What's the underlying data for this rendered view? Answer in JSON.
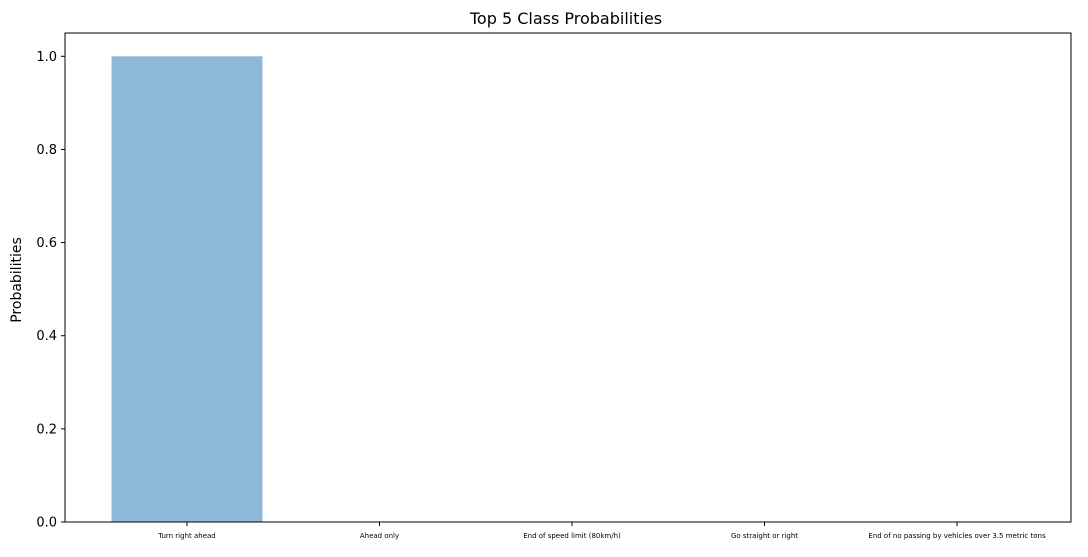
{
  "chart_data": {
    "type": "bar",
    "title": "Top 5 Class Probabilities",
    "xlabel": "",
    "ylabel": "Probabilities",
    "categories": [
      "Turn right ahead",
      "Ahead only",
      "End of speed limit (80km/h)",
      "Go straight or right",
      "End of no passing by vehicles over 3.5 metric tons"
    ],
    "values": [
      1.0,
      0.0,
      0.0,
      0.0,
      0.0
    ],
    "ylim": [
      0,
      1.05
    ],
    "yticks": [
      "0.0",
      "0.2",
      "0.4",
      "0.6",
      "0.8",
      "1.0"
    ],
    "grid": false,
    "bar_color": "#8eb8d8",
    "bar_alpha_style": "semi-transparent"
  }
}
